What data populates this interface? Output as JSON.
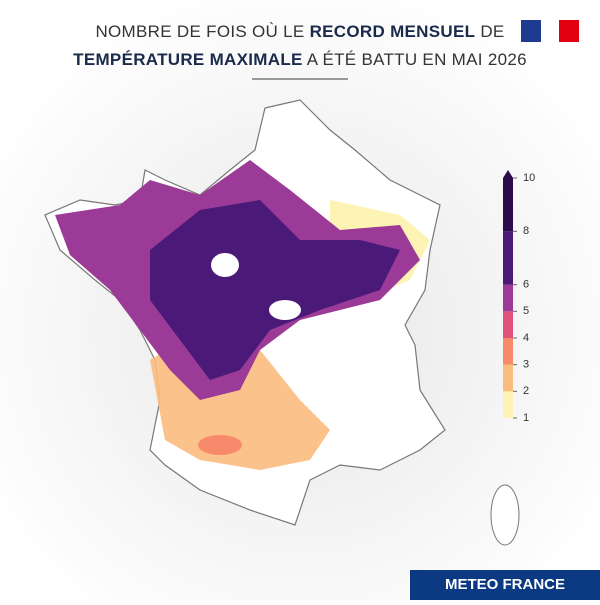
{
  "header": {
    "title_line1": [
      {
        "text": "NOMBRE DE FOIS OÙ LE ",
        "bold": false
      },
      {
        "text": "RECORD MENSUEL",
        "bold": true
      },
      {
        "text": " DE",
        "bold": false
      }
    ],
    "title_line2": [
      {
        "text": "TEMPÉRATURE MAXIMALE",
        "bold": true
      },
      {
        "text": " A ÉTÉ BATTU EN MAI 2026",
        "bold": false
      }
    ]
  },
  "legend": {
    "ticks": [
      1,
      2,
      3,
      4,
      5,
      6,
      8,
      10
    ],
    "colors": [
      "#fdf3b5",
      "#fbbd7e",
      "#f88a6c",
      "#e0527a",
      "#9b3a97",
      "#4b1a78",
      "#2a0d4a"
    ]
  },
  "footer": {
    "brand": "METEO FRANCE"
  }
}
